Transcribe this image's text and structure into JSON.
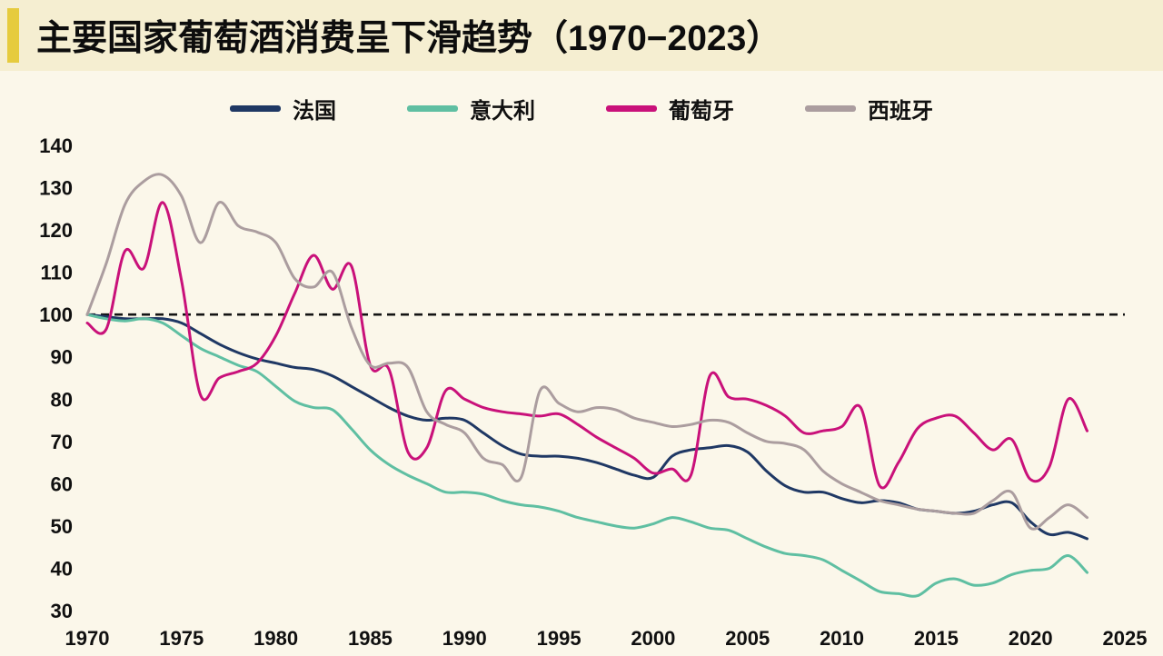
{
  "header": {
    "title": "主要国家葡萄酒消费呈下滑趋势（1970−2023）"
  },
  "colors": {
    "page_bg": "#fbf7ea",
    "header_bg": "#f5eed1",
    "accent_bar": "#e6cb3e",
    "baseline": "#141414"
  },
  "chart_data": {
    "type": "line",
    "title": "主要国家葡萄酒消费呈下滑趋势（1970−2023）",
    "xlabel": "",
    "ylabel": "",
    "xlim": [
      1970,
      2025
    ],
    "ylim": [
      30,
      140
    ],
    "grid": false,
    "legend_position": "top",
    "baseline": 100,
    "baseline_style": "dashed",
    "yticks": [
      140,
      130,
      120,
      110,
      100,
      90,
      80,
      70,
      60,
      50,
      40,
      30
    ],
    "xticks": [
      1970,
      1975,
      1980,
      1985,
      1990,
      1995,
      2000,
      2005,
      2010,
      2015,
      2020,
      2025
    ],
    "x": {
      "start": 1970,
      "step": 1,
      "end": 2023
    },
    "series": [
      {
        "id": "france",
        "name": "法国",
        "color": "#1f3864",
        "values": [
          100,
          99.5,
          99,
          99,
          99,
          98,
          95.5,
          93,
          91,
          89.5,
          88.5,
          87.5,
          87,
          85.5,
          83,
          80.5,
          78,
          76,
          75,
          75.5,
          75,
          72,
          69,
          67,
          66.5,
          66.5,
          66,
          65,
          63.5,
          62,
          61.5,
          66.5,
          68,
          68.5,
          69,
          67.5,
          63,
          59.5,
          58,
          58,
          56.5,
          55.5,
          56,
          55.5,
          54,
          53.5,
          53,
          53.5,
          55,
          55.5,
          51,
          48,
          48.5,
          47
        ]
      },
      {
        "id": "italy",
        "name": "意大利",
        "color": "#5fbfa2",
        "values": [
          100,
          99,
          98.5,
          99,
          98,
          95,
          92,
          90,
          88,
          86.5,
          83,
          79.5,
          78,
          77.5,
          73,
          68,
          64.5,
          62,
          60,
          58,
          58,
          57.5,
          56,
          55,
          54.5,
          53.5,
          52,
          51,
          50,
          49.5,
          50.5,
          52,
          51,
          49.5,
          49,
          47,
          45,
          43.5,
          43,
          42,
          39.5,
          37,
          34.5,
          34,
          33.5,
          36.5,
          37.5,
          36,
          36.5,
          38.5,
          39.5,
          40,
          43,
          39
        ]
      },
      {
        "id": "portugal",
        "name": "葡萄牙",
        "color": "#c9117a",
        "values": [
          98,
          96.5,
          115,
          111,
          126.5,
          108,
          81,
          85,
          86.5,
          88.5,
          95,
          105,
          114,
          106,
          111.5,
          88,
          87,
          67.5,
          68.5,
          82,
          80,
          78,
          77,
          76.5,
          76,
          76.5,
          74,
          71,
          68.5,
          66,
          62.5,
          63.5,
          62,
          85.5,
          80.5,
          80,
          78.5,
          76,
          72,
          72.5,
          73.5,
          78,
          59.5,
          65,
          73,
          75.5,
          76,
          72,
          68,
          70.5,
          61,
          64,
          80,
          72.5
        ]
      },
      {
        "id": "spain",
        "name": "西班牙",
        "color": "#ab9d9f",
        "values": [
          100,
          112,
          126,
          131.5,
          133,
          128,
          117,
          126.5,
          121,
          119.5,
          117,
          108.5,
          106.5,
          110,
          97,
          88,
          88.5,
          87.5,
          77,
          74,
          72,
          66,
          64.5,
          61.5,
          82,
          79,
          77,
          78,
          77.5,
          75.5,
          74.5,
          73.5,
          74,
          75,
          74.5,
          72,
          70,
          69.5,
          68,
          63,
          60,
          58,
          56,
          55,
          54,
          53.5,
          53,
          53,
          56,
          58,
          49.5,
          52,
          55,
          52
        ]
      }
    ]
  }
}
